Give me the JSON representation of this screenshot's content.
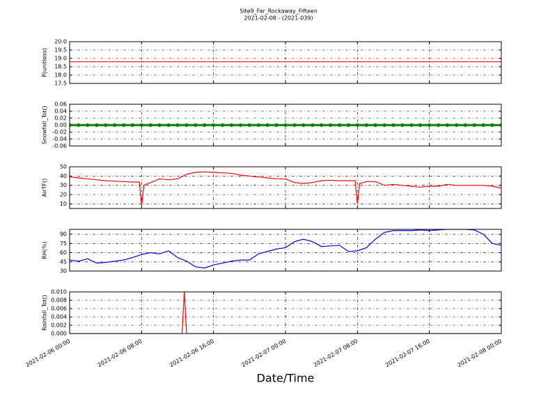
{
  "title": "Site9_Far_Rockaway_Fifteen",
  "subtitle": "2021-02-08 - (2021-039)",
  "xlabel": "Date/Time",
  "chart_data": [
    {
      "type": "line",
      "ylabel": "P(unitless)",
      "color": "#ff0000",
      "grid": true,
      "x": [
        "2021-02-06 00:00",
        "2021-02-08 00:00"
      ],
      "values": [
        18.8,
        18.8
      ],
      "xlim": [
        "2021-02-06 00:00",
        "2021-02-08 00:00"
      ],
      "xticks": [
        "2021-02-06 00:00",
        "2021-02-06 08:00",
        "2021-02-06 16:00",
        "2021-02-07 00:00",
        "2021-02-07 08:00",
        "2021-02-07 16:00",
        "2021-02-08 00:00"
      ],
      "ylim": [
        17.5,
        20
      ],
      "yticks": [
        17.5,
        {
          "value": 18,
          "label": "18.0"
        },
        18.5,
        {
          "value": 19,
          "label": "19.0"
        },
        19.5,
        {
          "value": 20,
          "label": "20.0"
        }
      ]
    },
    {
      "type": "line",
      "ylabel": "Snowfall_Tot()",
      "color": "#008000",
      "grid": true,
      "markers": true,
      "x": [
        "2021-02-06 00:00",
        "2021-02-06 01:00",
        "2021-02-06 02:00",
        "2021-02-06 03:00",
        "2021-02-06 04:00",
        "2021-02-06 05:00",
        "2021-02-06 06:00",
        "2021-02-06 07:00",
        "2021-02-06 08:00",
        "2021-02-06 09:00",
        "2021-02-06 10:00",
        "2021-02-06 11:00",
        "2021-02-06 12:00",
        "2021-02-06 13:00",
        "2021-02-06 14:00",
        "2021-02-06 15:00",
        "2021-02-06 16:00",
        "2021-02-06 17:00",
        "2021-02-06 18:00",
        "2021-02-06 19:00",
        "2021-02-06 20:00",
        "2021-02-06 21:00",
        "2021-02-06 22:00",
        "2021-02-06 23:00",
        "2021-02-07 00:00",
        "2021-02-07 01:00",
        "2021-02-07 02:00",
        "2021-02-07 03:00",
        "2021-02-07 04:00",
        "2021-02-07 05:00",
        "2021-02-07 06:00",
        "2021-02-07 07:00",
        "2021-02-07 08:00",
        "2021-02-07 09:00",
        "2021-02-07 10:00",
        "2021-02-07 11:00",
        "2021-02-07 12:00",
        "2021-02-07 13:00",
        "2021-02-07 14:00",
        "2021-02-07 15:00",
        "2021-02-07 16:00",
        "2021-02-07 17:00",
        "2021-02-07 18:00",
        "2021-02-07 19:00",
        "2021-02-07 20:00",
        "2021-02-07 21:00",
        "2021-02-07 22:00",
        "2021-02-07 23:00",
        "2021-02-08 00:00"
      ],
      "values": [
        0,
        0,
        0,
        0,
        0,
        0,
        0,
        0,
        0,
        0,
        0,
        0,
        0,
        0,
        0,
        0,
        0,
        0,
        0,
        0,
        0,
        0,
        0,
        0,
        0,
        0,
        0,
        0,
        0,
        0,
        0,
        0,
        0,
        0,
        0,
        0,
        0,
        0,
        0,
        0,
        0,
        0,
        0,
        0,
        0,
        0,
        0,
        0,
        0
      ],
      "xlim": [
        "2021-02-06 00:00",
        "2021-02-08 00:00"
      ],
      "xticks": [
        "2021-02-06 00:00",
        "2021-02-06 08:00",
        "2021-02-06 16:00",
        "2021-02-07 00:00",
        "2021-02-07 08:00",
        "2021-02-07 16:00",
        "2021-02-08 00:00"
      ],
      "ylim": [
        -0.06,
        0.06
      ],
      "yticks": [
        {
          "value": -0.06,
          "label": "-0.06"
        },
        {
          "value": -0.04,
          "label": "-0.04"
        },
        {
          "value": -0.02,
          "label": "-0.02"
        },
        {
          "value": 0,
          "label": "0.00"
        },
        {
          "value": 0.02,
          "label": "0.02"
        },
        {
          "value": 0.04,
          "label": "0.04"
        },
        {
          "value": 0.06,
          "label": "0.06"
        }
      ]
    },
    {
      "type": "line",
      "ylabel": "AirTF()",
      "color": "#ff0000",
      "grid": true,
      "x": [
        "2021-02-06 00:00",
        "2021-02-06 01:00",
        "2021-02-06 02:00",
        "2021-02-06 03:00",
        "2021-02-06 04:00",
        "2021-02-06 05:00",
        "2021-02-06 06:00",
        "2021-02-06 07:00",
        "2021-02-06 07:45",
        "2021-02-06 08:00",
        "2021-02-06 08:15",
        "2021-02-06 09:00",
        "2021-02-06 10:00",
        "2021-02-06 11:00",
        "2021-02-06 12:00",
        "2021-02-06 13:00",
        "2021-02-06 14:00",
        "2021-02-06 15:00",
        "2021-02-06 16:00",
        "2021-02-06 17:00",
        "2021-02-06 18:00",
        "2021-02-06 19:00",
        "2021-02-06 20:00",
        "2021-02-06 21:00",
        "2021-02-06 22:00",
        "2021-02-06 23:00",
        "2021-02-07 00:00",
        "2021-02-07 01:00",
        "2021-02-07 02:00",
        "2021-02-07 03:00",
        "2021-02-07 04:00",
        "2021-02-07 05:00",
        "2021-02-07 06:00",
        "2021-02-07 07:00",
        "2021-02-07 07:45",
        "2021-02-07 08:00",
        "2021-02-07 08:15",
        "2021-02-07 09:00",
        "2021-02-07 10:00",
        "2021-02-07 11:00",
        "2021-02-07 12:00",
        "2021-02-07 13:00",
        "2021-02-07 14:00",
        "2021-02-07 15:00",
        "2021-02-07 16:00",
        "2021-02-07 17:00",
        "2021-02-07 18:00",
        "2021-02-07 19:00",
        "2021-02-07 20:00",
        "2021-02-07 21:00",
        "2021-02-07 22:00",
        "2021-02-07 23:00",
        "2021-02-08 00:00"
      ],
      "values": [
        39,
        38,
        37,
        36,
        35,
        34.5,
        34,
        33.5,
        33.5,
        8,
        30,
        33,
        37,
        36,
        37,
        42,
        44,
        44.5,
        44,
        43.5,
        43,
        41,
        40,
        39,
        38,
        37,
        37,
        33,
        32,
        33,
        35,
        35.5,
        35,
        35,
        35,
        10,
        32,
        34,
        34,
        30,
        31,
        30,
        29,
        28,
        29,
        29,
        31,
        30,
        30,
        30,
        30,
        29,
        27
      ],
      "xlim": [
        "2021-02-06 00:00",
        "2021-02-08 00:00"
      ],
      "xticks": [
        "2021-02-06 00:00",
        "2021-02-06 08:00",
        "2021-02-06 16:00",
        "2021-02-07 00:00",
        "2021-02-07 08:00",
        "2021-02-07 16:00",
        "2021-02-08 00:00"
      ],
      "ylim": [
        5,
        50
      ],
      "yticks": [
        10,
        20,
        30,
        40,
        50
      ]
    },
    {
      "type": "line",
      "ylabel": "RH(%)",
      "color": "#0000ff",
      "grid": true,
      "x": [
        "2021-02-06 00:00",
        "2021-02-06 01:00",
        "2021-02-06 02:00",
        "2021-02-06 03:00",
        "2021-02-06 04:00",
        "2021-02-06 05:00",
        "2021-02-06 06:00",
        "2021-02-06 07:00",
        "2021-02-06 08:00",
        "2021-02-06 09:00",
        "2021-02-06 10:00",
        "2021-02-06 11:00",
        "2021-02-06 12:00",
        "2021-02-06 13:00",
        "2021-02-06 14:00",
        "2021-02-06 15:00",
        "2021-02-06 16:00",
        "2021-02-06 17:00",
        "2021-02-06 18:00",
        "2021-02-06 19:00",
        "2021-02-06 20:00",
        "2021-02-06 21:00",
        "2021-02-06 22:00",
        "2021-02-06 23:00",
        "2021-02-07 00:00",
        "2021-02-07 01:00",
        "2021-02-07 02:00",
        "2021-02-07 03:00",
        "2021-02-07 04:00",
        "2021-02-07 05:00",
        "2021-02-07 06:00",
        "2021-02-07 07:00",
        "2021-02-07 08:00",
        "2021-02-07 09:00",
        "2021-02-07 10:00",
        "2021-02-07 11:00",
        "2021-02-07 12:00",
        "2021-02-07 13:00",
        "2021-02-07 14:00",
        "2021-02-07 15:00",
        "2021-02-07 16:00",
        "2021-02-07 17:00",
        "2021-02-07 18:00",
        "2021-02-07 19:00",
        "2021-02-07 20:00",
        "2021-02-07 21:00",
        "2021-02-07 22:00",
        "2021-02-07 23:00",
        "2021-02-08 00:00"
      ],
      "values": [
        48,
        46,
        50,
        43,
        44,
        46,
        48,
        52,
        57,
        60,
        58,
        63,
        52,
        46,
        37,
        35,
        40,
        43,
        46,
        48,
        48,
        58,
        62,
        66,
        68,
        78,
        82,
        78,
        70,
        71,
        72,
        62,
        63,
        68,
        82,
        93,
        96,
        96,
        96,
        97,
        96,
        97,
        98,
        98,
        98,
        97,
        90,
        75,
        72
      ],
      "xlim": [
        "2021-02-06 00:00",
        "2021-02-08 00:00"
      ],
      "xticks": [
        "2021-02-06 00:00",
        "2021-02-06 08:00",
        "2021-02-06 16:00",
        "2021-02-07 00:00",
        "2021-02-07 08:00",
        "2021-02-07 16:00",
        "2021-02-08 00:00"
      ],
      "ylim": [
        30,
        98
      ],
      "yticks": [
        30,
        45,
        60,
        75,
        90
      ]
    },
    {
      "type": "line",
      "ylabel": "Rainfall_Tot()",
      "color": "#ff0000",
      "grid": true,
      "x": [
        "2021-02-06 00:00",
        "2021-02-06 12:30",
        "2021-02-06 12:45",
        "2021-02-06 13:00",
        "2021-02-08 00:00"
      ],
      "values": [
        0,
        0,
        0.01,
        0,
        0
      ],
      "xlim": [
        "2021-02-06 00:00",
        "2021-02-08 00:00"
      ],
      "xticks": [
        "2021-02-06 00:00",
        "2021-02-06 08:00",
        "2021-02-06 16:00",
        "2021-02-07 00:00",
        "2021-02-07 08:00",
        "2021-02-07 16:00",
        "2021-02-08 00:00"
      ],
      "ylim": [
        0,
        0.01
      ],
      "yticks": [
        {
          "value": 0,
          "label": "0.000"
        },
        {
          "value": 0.002,
          "label": "0.002"
        },
        {
          "value": 0.004,
          "label": "0.004"
        },
        {
          "value": 0.006,
          "label": "0.006"
        },
        {
          "value": 0.008,
          "label": "0.008"
        },
        {
          "value": 0.01,
          "label": "0.010"
        }
      ]
    }
  ]
}
